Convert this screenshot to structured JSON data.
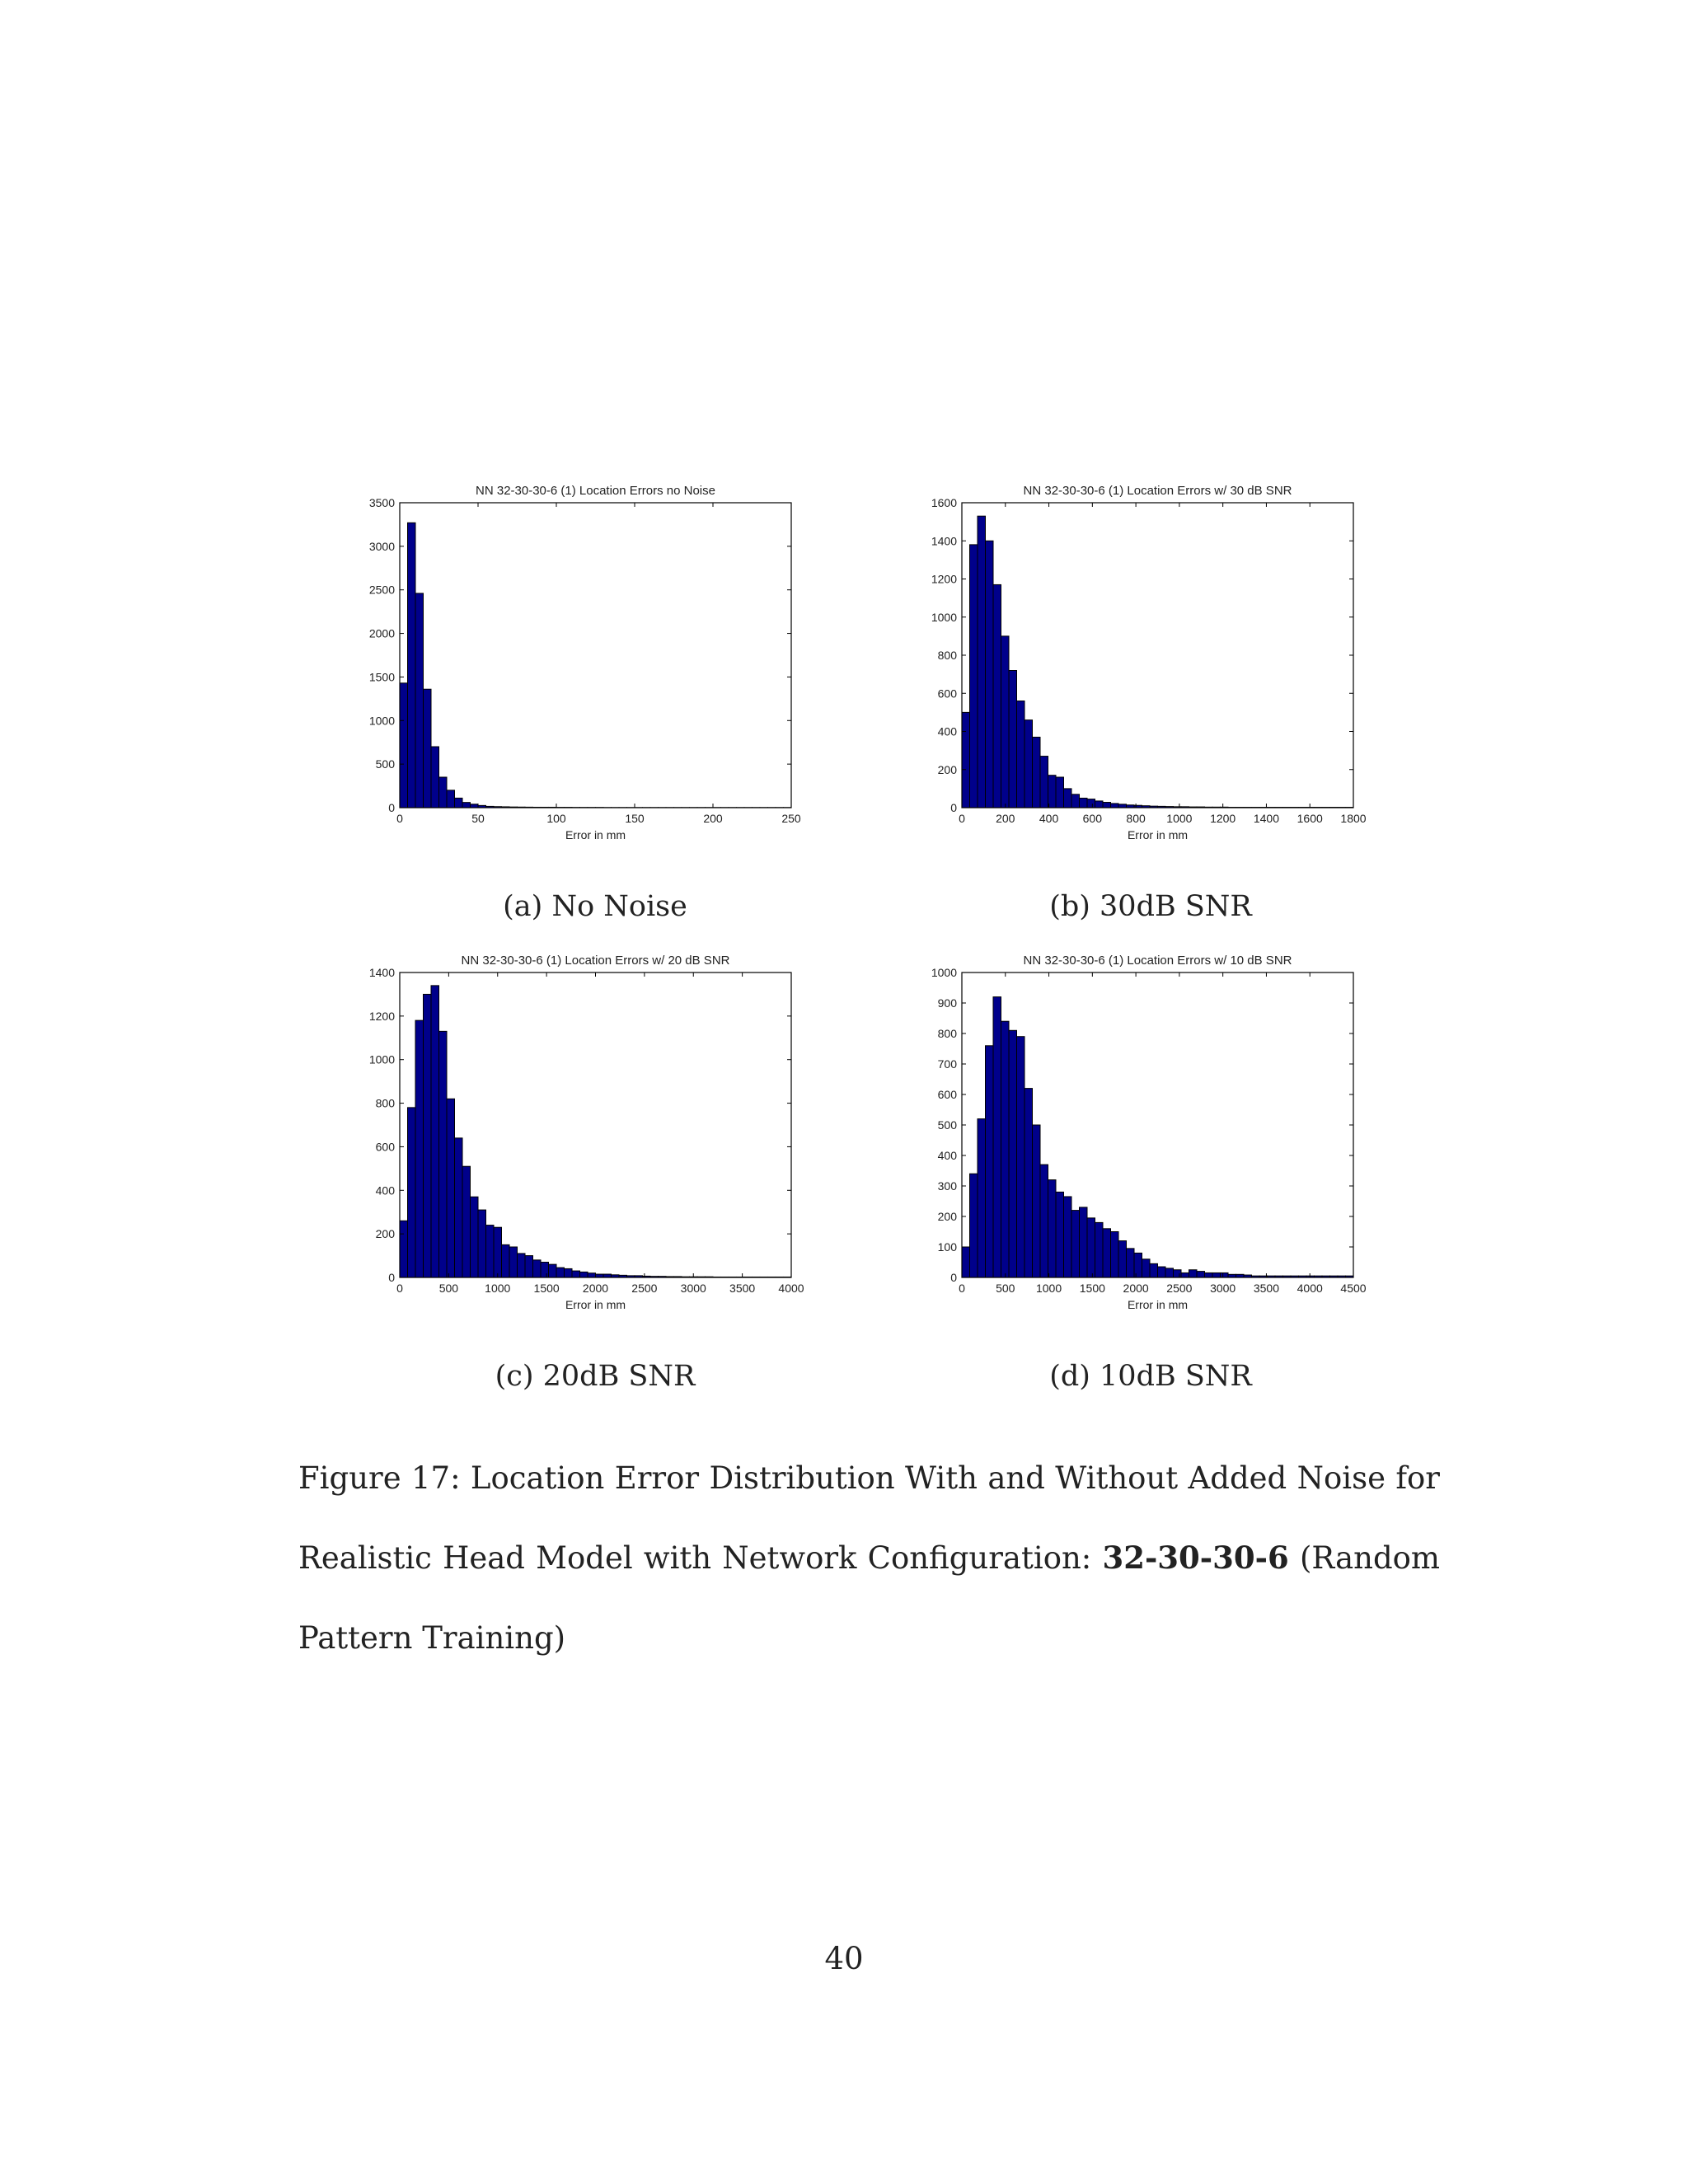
{
  "chart_data": [
    {
      "type": "bar",
      "title": "NN 32-30-30-6 (1) Location Errors no Noise",
      "xlabel": "Error in mm",
      "ylabel": "",
      "xlim": [
        0,
        250
      ],
      "ylim": [
        0,
        3500
      ],
      "xticks": [
        0,
        50,
        100,
        150,
        200,
        250
      ],
      "yticks": [
        0,
        500,
        1000,
        1500,
        2000,
        2500,
        3000,
        3500
      ],
      "bin_width": 5,
      "values": [
        1430,
        3270,
        2460,
        1360,
        700,
        350,
        200,
        110,
        60,
        40,
        25,
        15,
        12,
        10,
        8,
        7,
        6,
        5,
        5,
        5,
        4,
        4,
        3,
        3,
        3,
        3,
        2,
        2,
        2,
        2,
        2,
        2,
        2,
        2,
        2,
        2,
        2,
        2,
        2,
        2,
        2,
        2,
        2,
        2,
        2,
        2,
        2,
        2,
        2,
        2
      ],
      "bar_color": "#00008b",
      "edge_color": "#000000"
    },
    {
      "type": "bar",
      "title": "NN 32-30-30-6 (1) Location Errors w/ 30 dB SNR",
      "xlabel": "Error in mm",
      "ylabel": "",
      "xlim": [
        0,
        1800
      ],
      "ylim": [
        0,
        1600
      ],
      "xticks": [
        0,
        200,
        400,
        600,
        800,
        1000,
        1200,
        1400,
        1600,
        1800
      ],
      "yticks": [
        0,
        200,
        400,
        600,
        800,
        1000,
        1200,
        1400,
        1600
      ],
      "bin_width": 36,
      "values": [
        500,
        1380,
        1530,
        1400,
        1170,
        900,
        720,
        560,
        460,
        370,
        270,
        170,
        160,
        100,
        70,
        50,
        45,
        35,
        28,
        22,
        18,
        14,
        12,
        10,
        8,
        7,
        6,
        5,
        5,
        4,
        4,
        3,
        3,
        3,
        2,
        2,
        2,
        2,
        2,
        2,
        2,
        2,
        2,
        2,
        2,
        2,
        2,
        2,
        2,
        2
      ],
      "bar_color": "#00008b",
      "edge_color": "#000000"
    },
    {
      "type": "bar",
      "title": "NN 32-30-30-6 (1) Location Errors w/ 20 dB SNR",
      "xlabel": "Error in mm",
      "ylabel": "",
      "xlim": [
        0,
        4000
      ],
      "ylim": [
        0,
        1400
      ],
      "xticks": [
        0,
        500,
        1000,
        1500,
        2000,
        2500,
        3000,
        3500,
        4000
      ],
      "yticks": [
        0,
        200,
        400,
        600,
        800,
        1000,
        1200,
        1400
      ],
      "bin_width": 80,
      "values": [
        260,
        780,
        1180,
        1300,
        1340,
        1130,
        820,
        640,
        510,
        370,
        310,
        240,
        230,
        150,
        140,
        110,
        100,
        80,
        70,
        60,
        45,
        40,
        30,
        25,
        20,
        15,
        15,
        12,
        10,
        8,
        8,
        6,
        5,
        5,
        4,
        4,
        3,
        3,
        3,
        3,
        2,
        2,
        2,
        2,
        2,
        2,
        2,
        2,
        2,
        2
      ],
      "bar_color": "#00008b",
      "edge_color": "#000000"
    },
    {
      "type": "bar",
      "title": "NN 32-30-30-6 (1) Location Errors w/ 10 dB SNR",
      "xlabel": "Error in mm",
      "ylabel": "",
      "xlim": [
        0,
        4500
      ],
      "ylim": [
        0,
        1000
      ],
      "xticks": [
        0,
        500,
        1000,
        1500,
        2000,
        2500,
        3000,
        3500,
        4000,
        4500
      ],
      "yticks": [
        0,
        100,
        200,
        300,
        400,
        500,
        600,
        700,
        800,
        900,
        1000
      ],
      "bin_width": 90,
      "values": [
        100,
        340,
        520,
        760,
        920,
        840,
        810,
        790,
        620,
        500,
        370,
        320,
        280,
        265,
        220,
        230,
        195,
        180,
        160,
        150,
        120,
        95,
        80,
        60,
        45,
        35,
        30,
        25,
        15,
        25,
        20,
        15,
        15,
        15,
        10,
        10,
        8,
        5,
        5,
        5,
        5,
        5,
        5,
        5,
        5,
        5,
        5,
        5,
        5,
        5
      ],
      "bar_color": "#00008b",
      "edge_color": "#000000"
    }
  ],
  "subcaptions": [
    "(a) No Noise",
    "(b) 30dB SNR",
    "(c) 20dB SNR",
    "(d) 10dB SNR"
  ],
  "figure_caption": {
    "prefix": "Figure 17: Location Error Distribution With and Without Added Noise for Realistic Head Model with Network Configuration:",
    "config": "32-30-30-6",
    "suffix": "(Random Pattern Training)"
  },
  "page_number": "40"
}
